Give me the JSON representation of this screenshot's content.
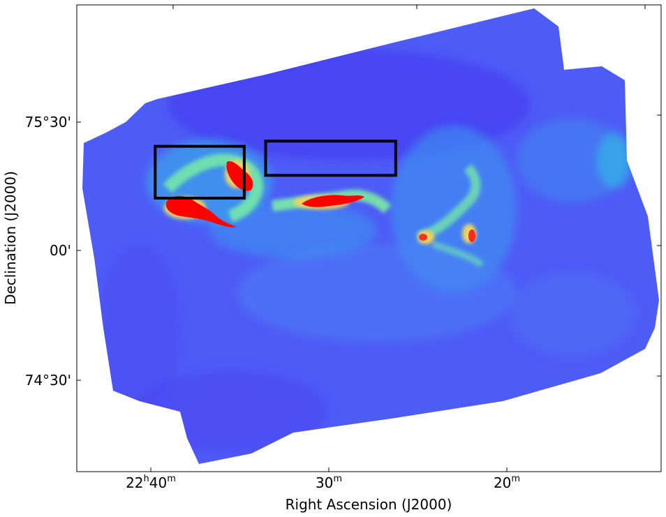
{
  "chart_data": {
    "type": "heatmap",
    "title": "",
    "xlabel": "Right Ascension (J2000)",
    "ylabel": "Declination (J2000)",
    "colormap": "rainbow",
    "x_ticks": [
      {
        "label": "22h40m",
        "ra_min": 40
      },
      {
        "label": "30m",
        "ra_min": 30
      },
      {
        "label": "20m",
        "ra_min": 20
      }
    ],
    "y_ticks": [
      {
        "label": "75°30'",
        "dec_arcmin": 30
      },
      {
        "label": "00'",
        "dec_arcmin": 0
      },
      {
        "label": "74°30'",
        "dec_arcmin": -30
      }
    ],
    "xlim_ra_min": [
      44.4,
      11.6
    ],
    "ylim_dec_arcmin": [
      -78.8,
      56.2
    ],
    "regions": [
      {
        "name": "region-1",
        "ra_min": [
          40.0,
          35.0
        ],
        "dec_arcmin": [
          0.3,
          15.3
        ],
        "color": "#000000"
      },
      {
        "name": "region-2",
        "ra_min": [
          33.8,
          26.5
        ],
        "dec_arcmin": [
          6.9,
          16.8
        ],
        "color": "#000000"
      }
    ],
    "colors": {
      "background": "#3f3ff0",
      "low": "#4a55f7",
      "mid": "#2bb8e6",
      "high_green": "#7cf3a0",
      "yellow": "#f3d35c",
      "peak": "#ff0000"
    }
  },
  "labels": {
    "x_tick_1_main": "22",
    "x_tick_1_h": "h",
    "x_tick_1_val": "40",
    "x_tick_1_m": "m",
    "x_tick_2_val": "30",
    "x_tick_2_m": "m",
    "x_tick_3_val": "20",
    "x_tick_3_m": "m"
  }
}
